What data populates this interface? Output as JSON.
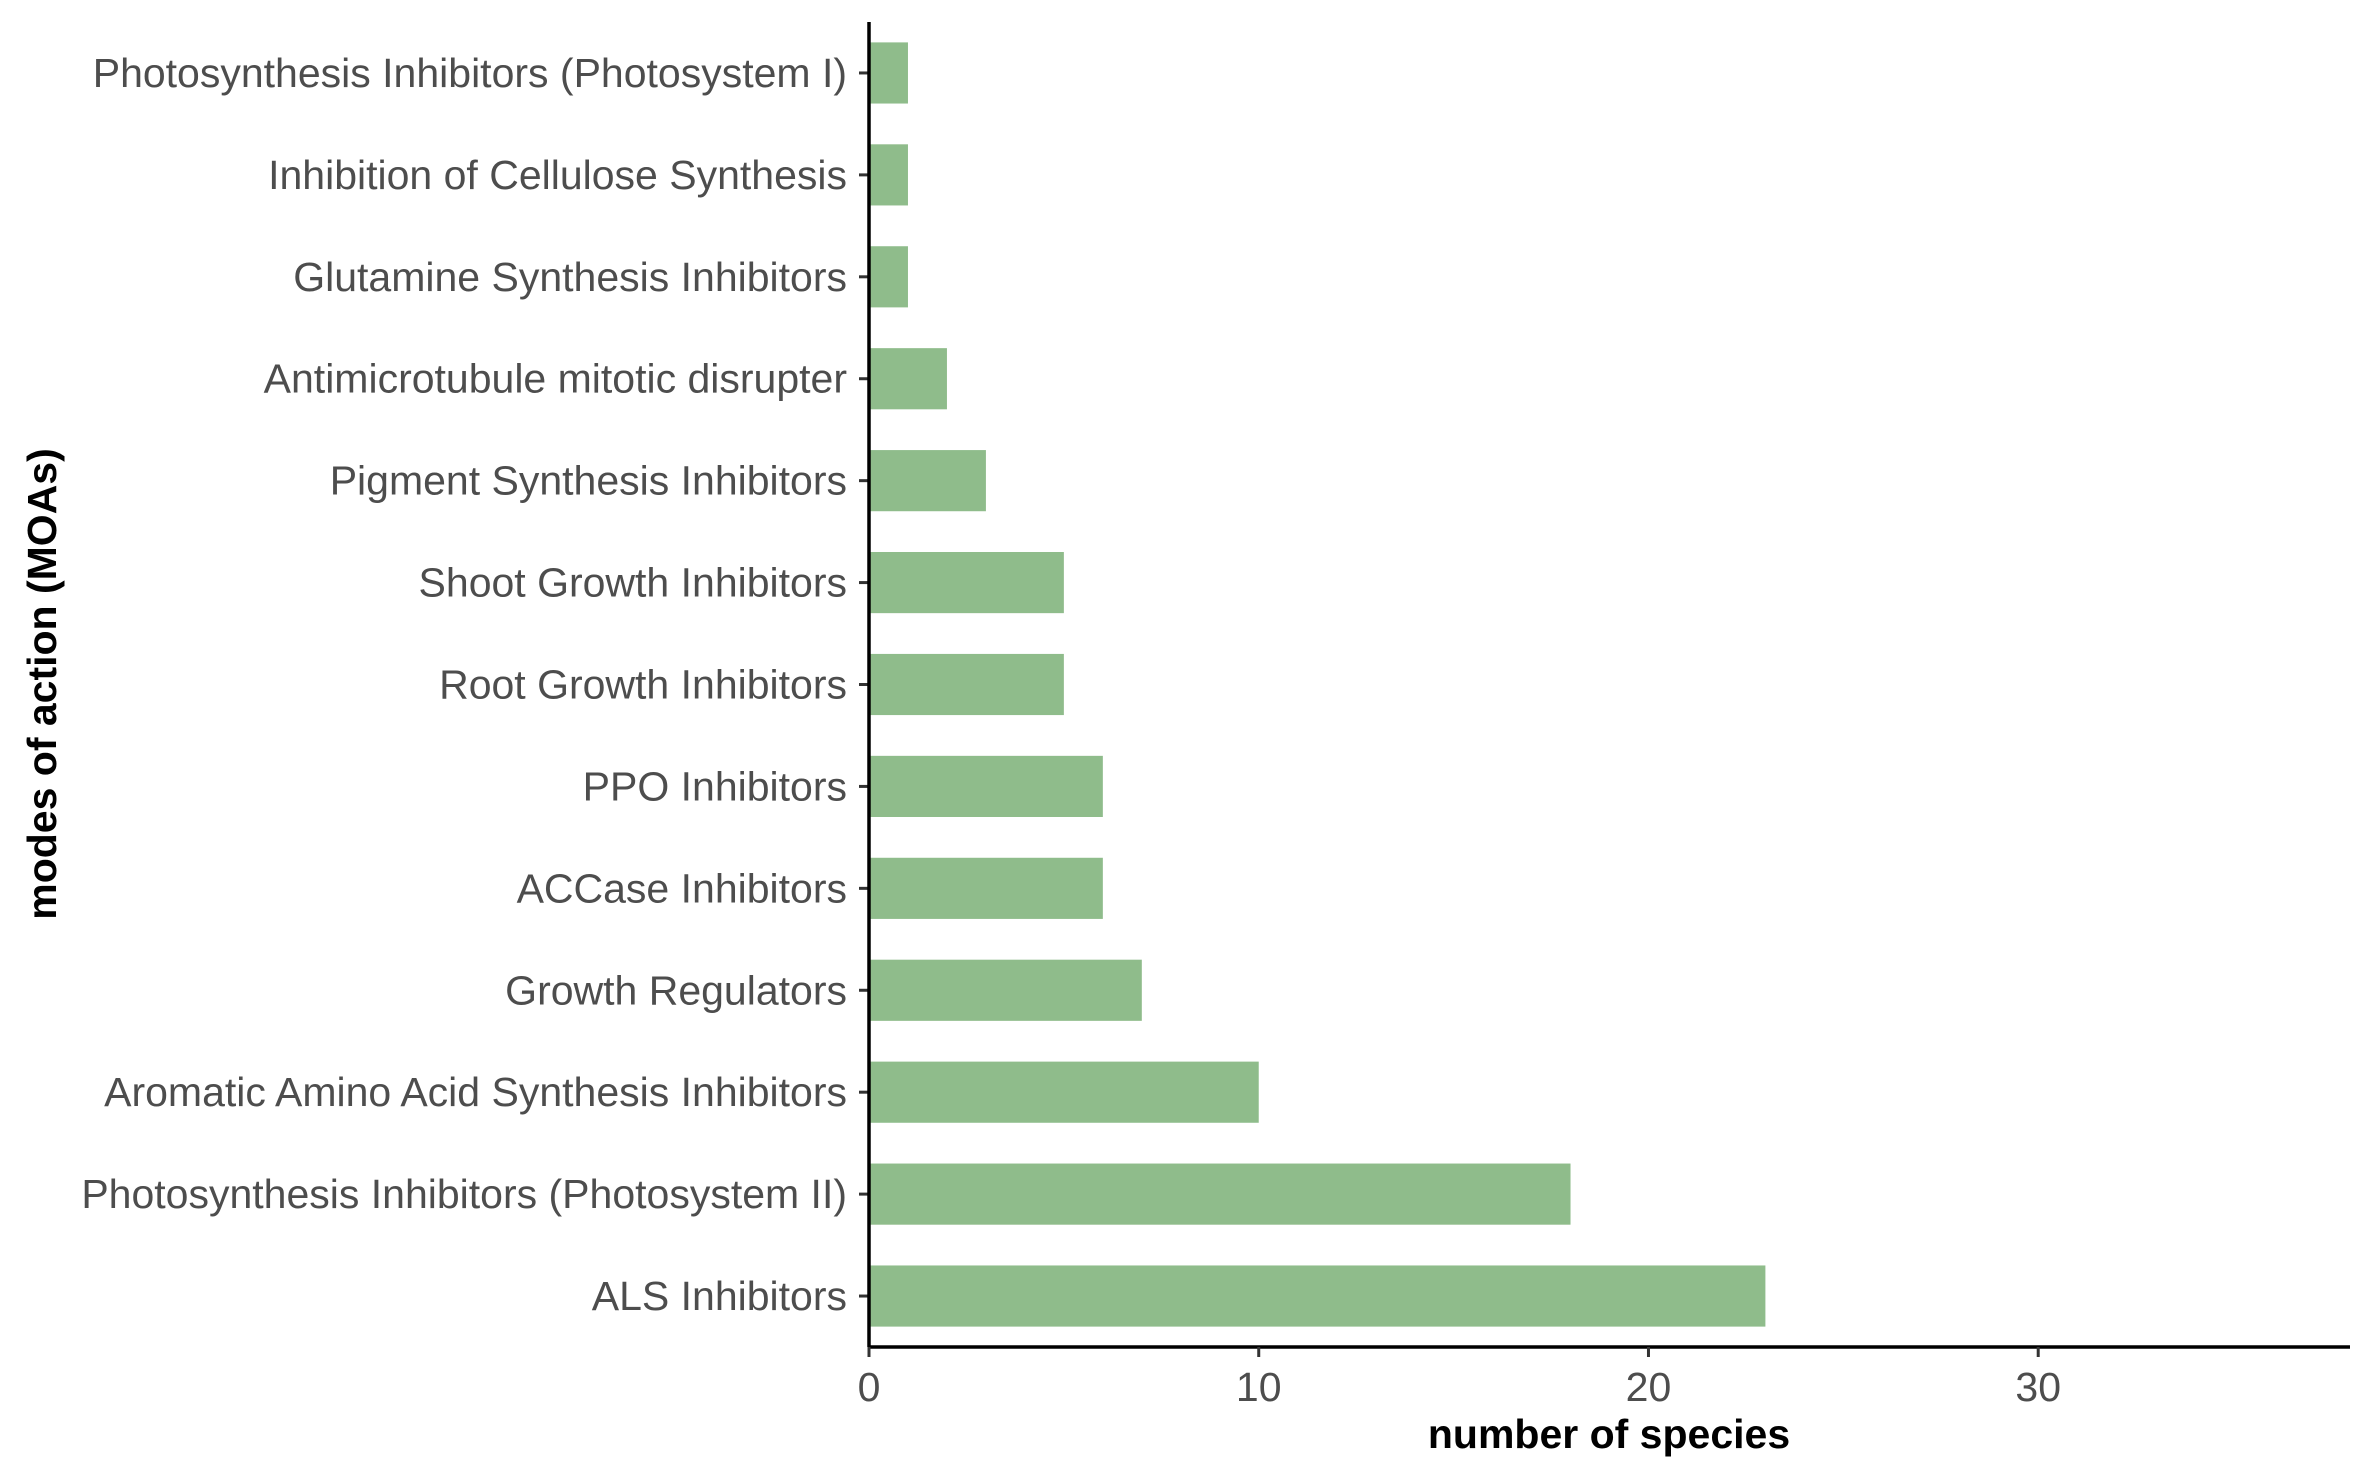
{
  "chart_data": {
    "type": "bar",
    "orientation": "horizontal",
    "categories": [
      "Photosynthesis Inhibitors (Photosystem I)",
      "Inhibition of Cellulose Synthesis",
      "Glutamine Synthesis Inhibitors",
      "Antimicrotubule mitotic disrupter",
      "Pigment Synthesis Inhibitors",
      "Shoot Growth Inhibitors",
      "Root Growth Inhibitors",
      "PPO Inhibitors",
      "ACCase Inhibitors",
      "Growth Regulators",
      "Aromatic Amino Acid Synthesis Inhibitors",
      "Photosynthesis Inhibitors (Photosystem II)",
      "ALS Inhibitors"
    ],
    "values": [
      1,
      1,
      1,
      2,
      3,
      5,
      5,
      6,
      6,
      7,
      10,
      18,
      23
    ],
    "xlabel": "number of species",
    "ylabel": "modes of action (MOAs)",
    "xticks": [
      "0",
      "10",
      "20",
      "30"
    ],
    "xlim": [
      0,
      38
    ],
    "grid": false,
    "bar_color": "#8fbc8b",
    "axis_color": "#000000"
  }
}
